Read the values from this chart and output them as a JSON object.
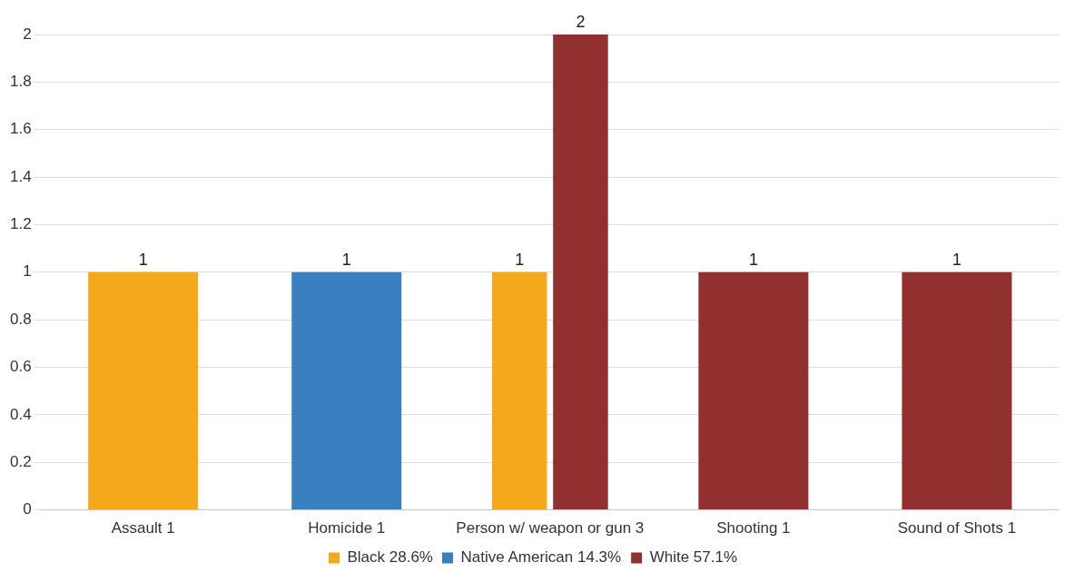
{
  "chart_data": {
    "type": "bar",
    "categories": [
      "Assault 1",
      "Homicide 1",
      "Person w/ weapon or gun 3",
      "Shooting 1",
      "Sound of Shots 1"
    ],
    "series": [
      {
        "name": "Black 28.6%",
        "color": "#f5a81c",
        "values": [
          1,
          null,
          1,
          null,
          null
        ]
      },
      {
        "name": "Native American 14.3%",
        "color": "#3a7fbf",
        "values": [
          null,
          1,
          null,
          null,
          null
        ]
      },
      {
        "name": "White 57.1%",
        "color": "#922f2f",
        "values": [
          null,
          null,
          2,
          1,
          1
        ]
      }
    ],
    "ylim": [
      0,
      2
    ],
    "yticks": [
      0,
      0.2,
      0.4,
      0.6,
      0.8,
      1,
      1.2,
      1.4,
      1.6,
      1.8,
      2
    ],
    "grid": "y",
    "legend": "bottom",
    "data_labels": true
  }
}
